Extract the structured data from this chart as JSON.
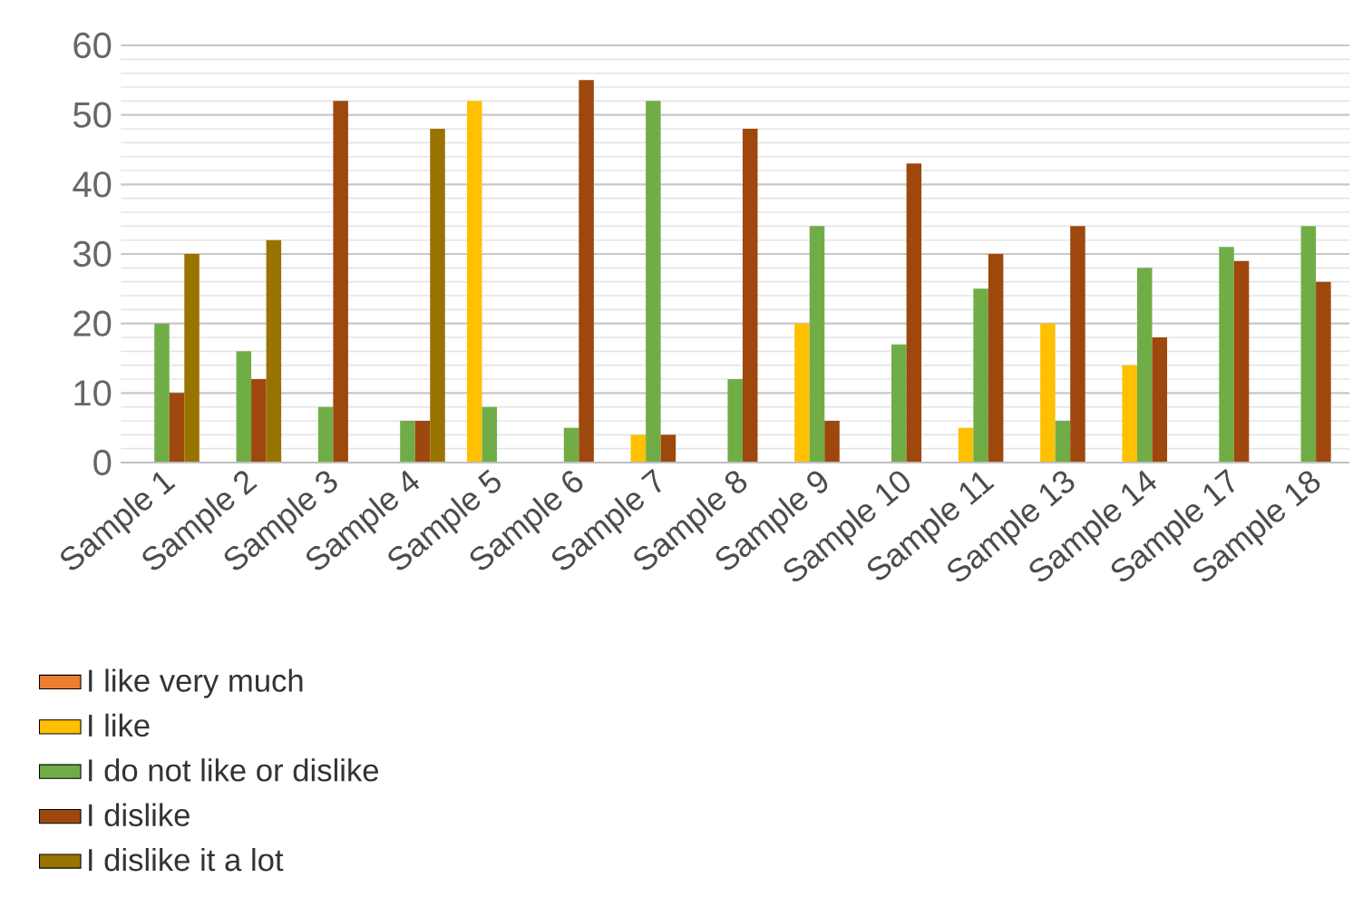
{
  "chart_data": {
    "type": "bar",
    "categories": [
      "Sample 1",
      "Sample 2",
      "Sample 3",
      "Sample 4",
      "Sample 5",
      "Sample 6",
      "Sample 7",
      "Sample 8",
      "Sample 9",
      "Sample 10",
      "Sample 11",
      "Sample 13",
      "Sample 14",
      "Sample 17",
      "Sample 18"
    ],
    "series": [
      {
        "name": "I like very much",
        "color": "#ed7d31",
        "values": [
          null,
          null,
          null,
          null,
          null,
          null,
          null,
          null,
          null,
          null,
          null,
          null,
          null,
          null,
          null
        ]
      },
      {
        "name": "I like",
        "color": "#ffc000",
        "values": [
          null,
          null,
          null,
          null,
          52,
          null,
          4,
          null,
          20,
          null,
          5,
          20,
          14,
          null,
          null
        ]
      },
      {
        "name": "I do not like or dislike",
        "color": "#70ad47",
        "values": [
          20,
          16,
          8,
          6,
          8,
          5,
          52,
          12,
          34,
          17,
          25,
          6,
          28,
          31,
          34
        ]
      },
      {
        "name": "I dislike",
        "color": "#9e480e",
        "values": [
          10,
          12,
          52,
          6,
          null,
          55,
          4,
          48,
          6,
          43,
          30,
          34,
          18,
          29,
          26
        ]
      },
      {
        "name": "I dislike it a lot",
        "color": "#997300",
        "values": [
          30,
          32,
          null,
          48,
          null,
          null,
          null,
          null,
          null,
          null,
          null,
          null,
          null,
          null,
          null
        ]
      }
    ],
    "ylim": [
      0,
      60
    ],
    "yticks": [
      0,
      10,
      20,
      30,
      40,
      50,
      60
    ],
    "grid": "y",
    "legend": "bottom"
  }
}
